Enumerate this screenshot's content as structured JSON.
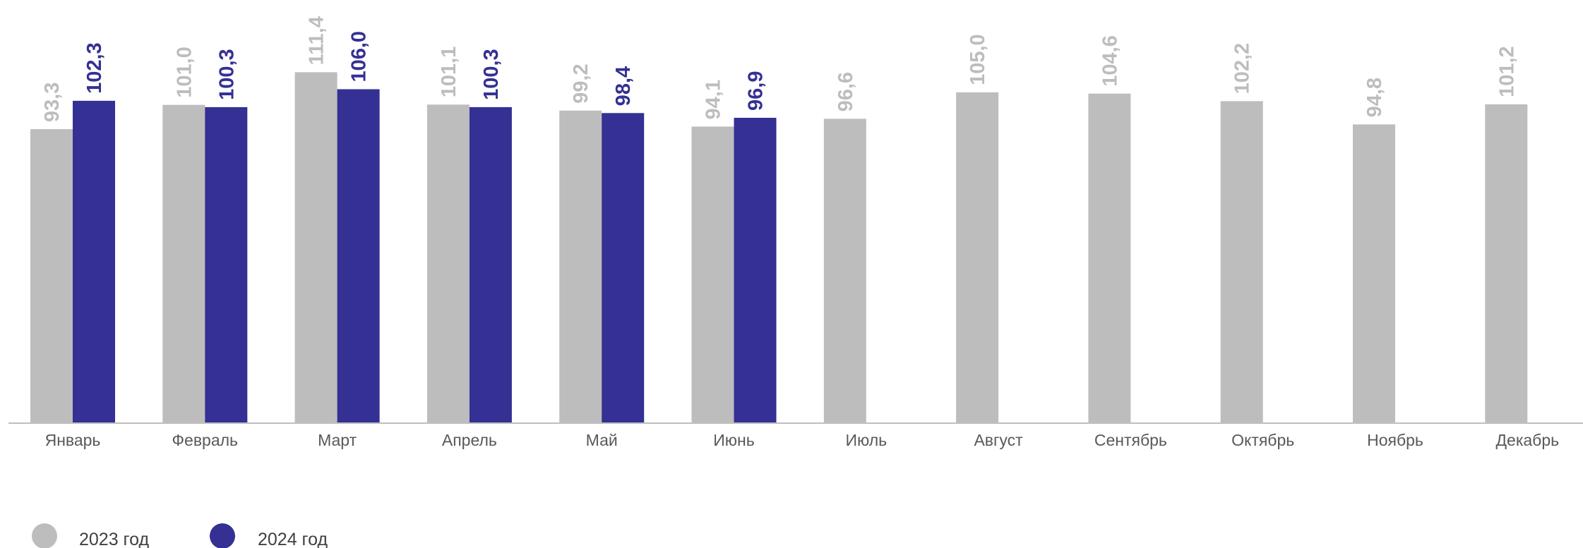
{
  "chart_data": {
    "type": "bar",
    "categories": [
      "Январь",
      "Февраль",
      "Март",
      "Апрель",
      "Май",
      "Июнь",
      "Июль",
      "Август",
      "Сентябрь",
      "Октябрь",
      "Ноябрь",
      "Декабрь"
    ],
    "series": [
      {
        "name": "2023 год",
        "color": "#bdbdbd",
        "values": [
          93.3,
          101.0,
          111.4,
          101.1,
          99.2,
          94.1,
          96.6,
          105.0,
          104.6,
          102.2,
          94.8,
          101.2
        ],
        "labels": [
          "93,3",
          "101,0",
          "111,4",
          "101,1",
          "99,2",
          "94,1",
          "96,6",
          "105,0",
          "104,6",
          "102,2",
          "94,8",
          "101,2"
        ]
      },
      {
        "name": "2024 год",
        "color": "#343094",
        "values": [
          102.3,
          100.3,
          106.0,
          100.3,
          98.4,
          96.9,
          null,
          null,
          null,
          null,
          null,
          null
        ],
        "labels": [
          "102,3",
          "100,3",
          "106,0",
          "100,3",
          "98,4",
          "96,9",
          null,
          null,
          null,
          null,
          null,
          null
        ]
      }
    ],
    "ylim": [
      0,
      120
    ],
    "grid": false,
    "legend": "bottom-left",
    "axis_color": "#bfbfbf"
  }
}
